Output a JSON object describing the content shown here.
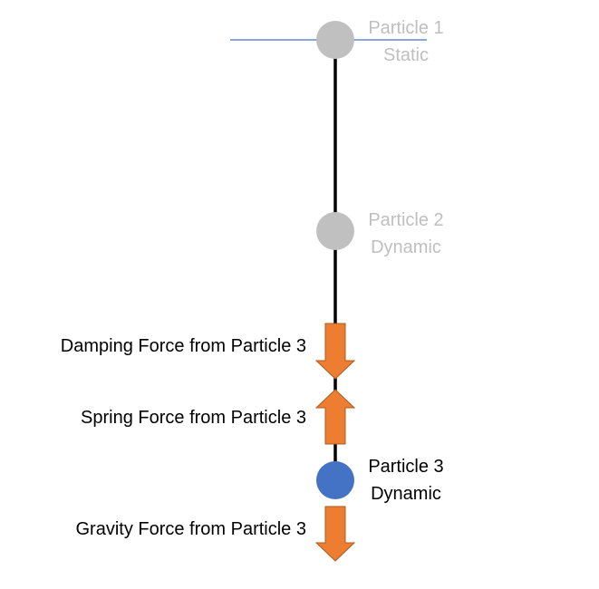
{
  "particles": [
    {
      "name": "Particle 1",
      "state": "Static",
      "color": "#c0c0c0",
      "text_color": "#bfbfbf"
    },
    {
      "name": "Particle 2",
      "state": "Dynamic",
      "color": "#c0c0c0",
      "text_color": "#bfbfbf"
    },
    {
      "name": "Particle 3",
      "state": "Dynamic",
      "color": "#4472c4",
      "text_color": "#000000"
    }
  ],
  "forces": {
    "damping": {
      "label": "Damping Force from Particle 3",
      "direction": "down"
    },
    "spring": {
      "label": "Spring Force from Particle 3",
      "direction": "up"
    },
    "gravity": {
      "label": "Gravity Force from Particle 3",
      "direction": "down"
    }
  },
  "colors": {
    "arrow_fill": "#ed7d31",
    "arrow_stroke": "#ae5a21",
    "anchor_line": "#4472c4",
    "spring_line": "#000000"
  }
}
